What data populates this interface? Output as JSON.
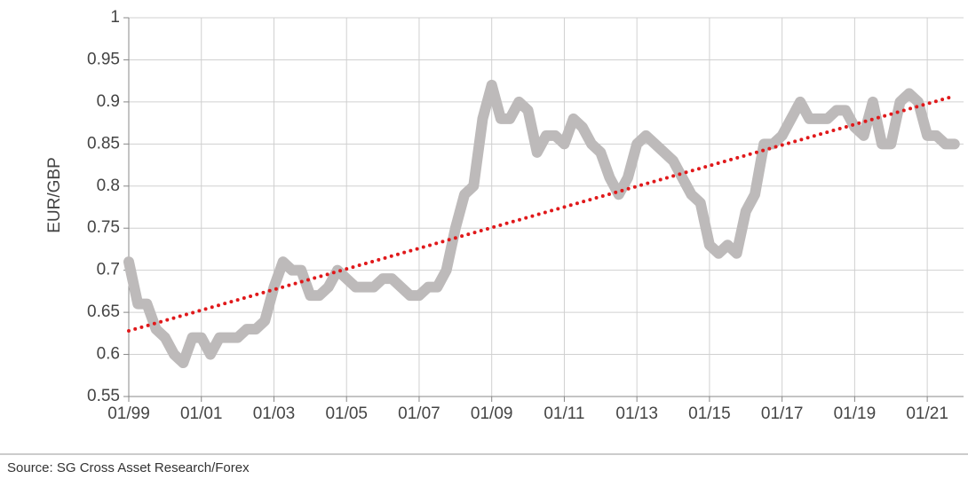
{
  "chart_data": {
    "type": "line",
    "ylabel": "EUR/GBP",
    "source": "Source: SG Cross Asset Research/Forex",
    "x": [
      "01/99",
      null,
      null,
      null,
      null,
      null,
      null,
      null,
      "01/01",
      null,
      null,
      null,
      null,
      null,
      null,
      null,
      "01/03",
      null,
      null,
      null,
      null,
      null,
      null,
      null,
      "01/05",
      null,
      null,
      null,
      null,
      null,
      null,
      null,
      "01/07",
      null,
      null,
      null,
      null,
      null,
      null,
      null,
      "01/09",
      null,
      null,
      null,
      null,
      null,
      null,
      null,
      "01/11",
      null,
      null,
      null,
      null,
      null,
      null,
      null,
      "01/13",
      null,
      null,
      null,
      null,
      null,
      null,
      null,
      "01/15",
      null,
      null,
      null,
      null,
      null,
      null,
      null,
      "01/17",
      null,
      null,
      null,
      null,
      null,
      null,
      null,
      "01/19",
      null,
      null,
      null,
      null,
      null,
      null,
      null,
      "01/21",
      null,
      null,
      null
    ],
    "series": [
      {
        "color": "#bdbaba",
        "values": [
          0.71,
          0.66,
          0.66,
          0.63,
          0.62,
          0.6,
          0.59,
          0.62,
          0.62,
          0.6,
          0.62,
          0.62,
          0.62,
          0.63,
          0.63,
          0.64,
          0.68,
          0.71,
          0.7,
          0.7,
          0.67,
          0.67,
          0.68,
          0.7,
          0.69,
          0.68,
          0.68,
          0.68,
          0.69,
          0.69,
          0.68,
          0.67,
          0.67,
          0.68,
          0.68,
          0.7,
          0.75,
          0.79,
          0.8,
          0.88,
          0.92,
          0.88,
          0.88,
          0.9,
          0.89,
          0.84,
          0.86,
          0.86,
          0.85,
          0.88,
          0.87,
          0.85,
          0.84,
          0.81,
          0.79,
          0.81,
          0.85,
          0.86,
          0.85,
          0.84,
          0.83,
          0.81,
          0.79,
          0.78,
          0.73,
          0.72,
          0.73,
          0.72,
          0.77,
          0.79,
          0.85,
          0.85,
          0.86,
          0.88,
          0.9,
          0.88,
          0.88,
          0.88,
          0.89,
          0.89,
          0.87,
          0.86,
          0.9,
          0.85,
          0.85,
          0.9,
          0.91,
          0.9,
          0.86,
          0.86,
          0.85,
          0.85
        ]
      }
    ],
    "trend": {
      "color": "#e0191b",
      "values": [
        0.628,
        0.907
      ]
    },
    "ylim": [
      0.55,
      1
    ],
    "yticks": [
      0.55,
      0.6,
      0.65,
      0.7,
      0.75,
      0.8,
      0.85,
      0.9,
      0.95,
      1
    ],
    "grid": true
  }
}
